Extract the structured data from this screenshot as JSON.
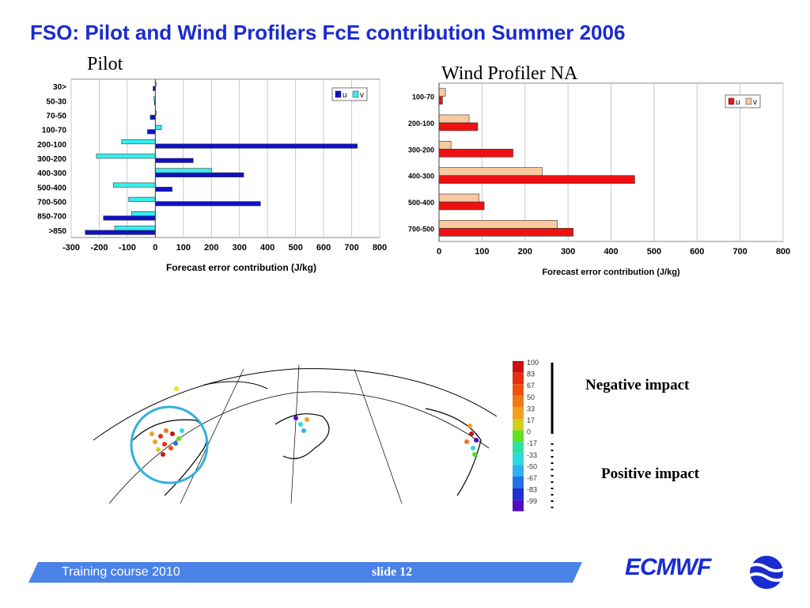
{
  "slide_title": "FSO: Pilot and Wind Profilers FcE contribution Summer 2006",
  "chart_data": [
    {
      "type": "bar",
      "orientation": "horizontal",
      "title": "Pilot",
      "xlabel": "Forecast error contribution (J/kg)",
      "categories": [
        "30>",
        "50-30",
        "70-50",
        "100-70",
        "200-100",
        "300-200",
        "400-300",
        "500-400",
        "700-500",
        "850-700",
        ">850"
      ],
      "series": [
        {
          "name": "u",
          "color": "#1010c8",
          "values": [
            -8,
            -3,
            -18,
            -28,
            720,
            135,
            315,
            60,
            375,
            -185,
            -250
          ]
        },
        {
          "name": "v",
          "color": "#33f0f0",
          "values": [
            0,
            -5,
            0,
            22,
            -120,
            -210,
            200,
            -150,
            -95,
            -85,
            -145
          ]
        }
      ],
      "xlim": [
        -300,
        800
      ],
      "xticks": [
        -300,
        -200,
        -100,
        0,
        100,
        200,
        300,
        400,
        500,
        600,
        700,
        800
      ],
      "legend": "top-right",
      "grid": true
    },
    {
      "type": "bar",
      "orientation": "horizontal",
      "title": "Wind Profiler NA",
      "xlabel": "Forecast error contribution (J/kg)",
      "categories": [
        "100-70",
        "200-100",
        "300-200",
        "400-300",
        "500-400",
        "700-500"
      ],
      "series": [
        {
          "name": "u",
          "color": "#ee1111",
          "values": [
            8,
            90,
            172,
            455,
            105,
            312
          ]
        },
        {
          "name": "v",
          "color": "#f8c8a0",
          "values": [
            15,
            70,
            28,
            240,
            93,
            275
          ]
        }
      ],
      "xlim": [
        0,
        800
      ],
      "xticks": [
        0,
        100,
        200,
        300,
        400,
        500,
        600,
        700,
        800
      ],
      "legend": "top-right",
      "grid": true
    }
  ],
  "colorbar": {
    "labels": [
      "100",
      "83",
      "67",
      "50",
      "33",
      "17",
      "0",
      "-17",
      "-33",
      "-50",
      "-67",
      "-83",
      "-99"
    ],
    "colors": [
      "#cc1010",
      "#e83010",
      "#f05010",
      "#f07818",
      "#f0a020",
      "#d0d020",
      "#60e020",
      "#30e0a0",
      "#30d8e0",
      "#30b0f0",
      "#2070e8",
      "#2030d0",
      "#5010c0"
    ]
  },
  "impact_labels": {
    "negative": "Negative impact",
    "positive": "Positive impact"
  },
  "footer": {
    "course": "Training course  2010",
    "slide": "slide 12",
    "logo": "ECMWF"
  }
}
